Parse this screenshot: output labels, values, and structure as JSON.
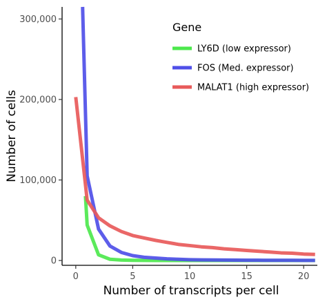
{
  "chart_data": {
    "type": "line",
    "title": "",
    "xlabel": "Number of transcripts per cell",
    "ylabel": "Number of cells",
    "xlim": [
      -1.2,
      21.2
    ],
    "ylim": [
      -6000,
      315000
    ],
    "x_ticks": [
      0,
      5,
      10,
      15,
      20
    ],
    "x_tick_labels": [
      "0",
      "5",
      "10",
      "15",
      "20"
    ],
    "y_ticks": [
      0,
      100000,
      200000,
      300000
    ],
    "y_tick_labels": [
      "0",
      "100,000",
      "200,000",
      "300,000"
    ],
    "grid": false,
    "legend": {
      "title": "Gene",
      "position": "top-right"
    },
    "series": [
      {
        "name": "LY6D (low expressor)",
        "color": "#4de84d",
        "x": [
          0,
          0.5,
          0.85,
          1,
          2,
          3,
          4,
          5,
          6,
          7,
          8,
          9,
          10,
          11,
          12,
          13,
          14,
          15,
          16,
          17,
          18,
          19,
          20,
          21
        ],
        "y": [
          null,
          null,
          80000,
          44000,
          7000,
          1500,
          500,
          200,
          100,
          0,
          0,
          0,
          0,
          0,
          0,
          0,
          0,
          0,
          0,
          0,
          0,
          0,
          0,
          0
        ]
      },
      {
        "name": "FOS (Med. expressor)",
        "color": "#4f4fe8",
        "x": [
          0.6,
          1,
          2,
          3,
          4,
          5,
          6,
          7,
          8,
          9,
          10,
          11,
          12,
          13,
          14,
          15,
          16,
          17,
          18,
          19,
          20,
          21
        ],
        "y": [
          315000,
          105000,
          39000,
          18000,
          10000,
          6000,
          4000,
          3000,
          2000,
          1500,
          1000,
          800,
          600,
          500,
          400,
          300,
          300,
          200,
          200,
          200,
          100,
          100
        ]
      },
      {
        "name": "MALAT1 (high expressor)",
        "color": "#e85a5a",
        "x": [
          0,
          1,
          2,
          3,
          4,
          5,
          6,
          7,
          8,
          9,
          10,
          11,
          12,
          13,
          14,
          15,
          16,
          17,
          18,
          19,
          20,
          21
        ],
        "y": [
          203000,
          75000,
          53000,
          43000,
          36000,
          31000,
          28000,
          25000,
          22500,
          20000,
          18500,
          17000,
          16000,
          14500,
          13500,
          12500,
          11500,
          10500,
          9500,
          9000,
          8000,
          7500
        ]
      }
    ]
  }
}
